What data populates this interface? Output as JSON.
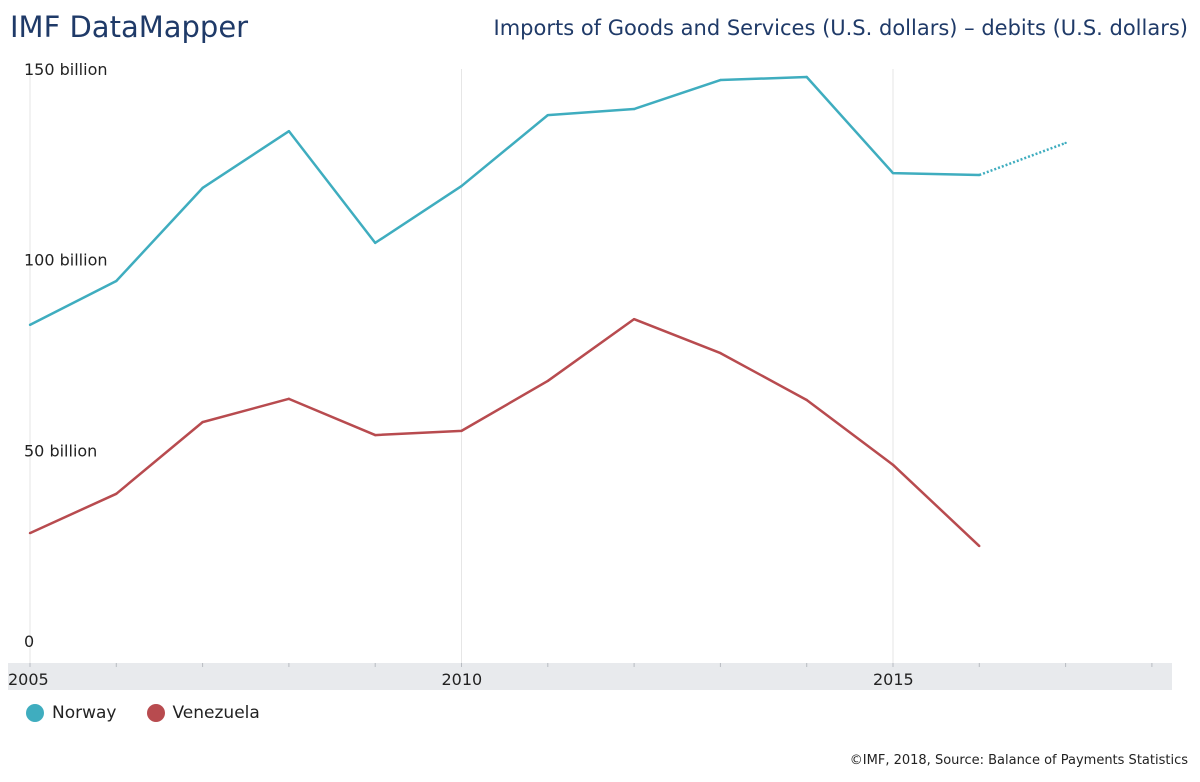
{
  "header": {
    "title": "IMF DataMapper",
    "subtitle": "Imports of Goods and Services (U.S. dollars) – debits (U.S. dollars)"
  },
  "footer": {
    "source": "©IMF, 2018, Source: Balance of Payments Statistics"
  },
  "chart_data": {
    "type": "line",
    "title": "Imports of Goods and Services (U.S. dollars) – debits (U.S. dollars)",
    "xlabel": "",
    "ylabel": "",
    "x": [
      2005,
      2006,
      2007,
      2008,
      2009,
      2010,
      2011,
      2012,
      2013,
      2014,
      2015,
      2016,
      2017
    ],
    "xlim": [
      2005,
      2018.5
    ],
    "ylim": [
      0,
      150
    ],
    "y_unit": "billion USD",
    "x_ticks": [
      "2005",
      "2010",
      "2015"
    ],
    "y_ticks": [
      {
        "v": 0,
        "label": "0"
      },
      {
        "v": 50,
        "label": "50 billion"
      },
      {
        "v": 100,
        "label": "100 billion"
      },
      {
        "v": 150,
        "label": "150 billion"
      }
    ],
    "legend_position": "bottom-left",
    "series": [
      {
        "name": "Norway",
        "color": "#3fadbf",
        "values": [
          82.9,
          94.4,
          118.8,
          133.7,
          104.4,
          119.3,
          137.9,
          139.5,
          147.1,
          147.9,
          122.7,
          122.2,
          130.6
        ],
        "projected_from": 2016
      },
      {
        "name": "Venezuela",
        "color": "#b84b4f",
        "values": [
          28.3,
          38.6,
          57.4,
          63.5,
          54.0,
          55.1,
          68.2,
          84.4,
          75.5,
          63.2,
          46.2,
          24.9,
          null
        ]
      }
    ]
  }
}
